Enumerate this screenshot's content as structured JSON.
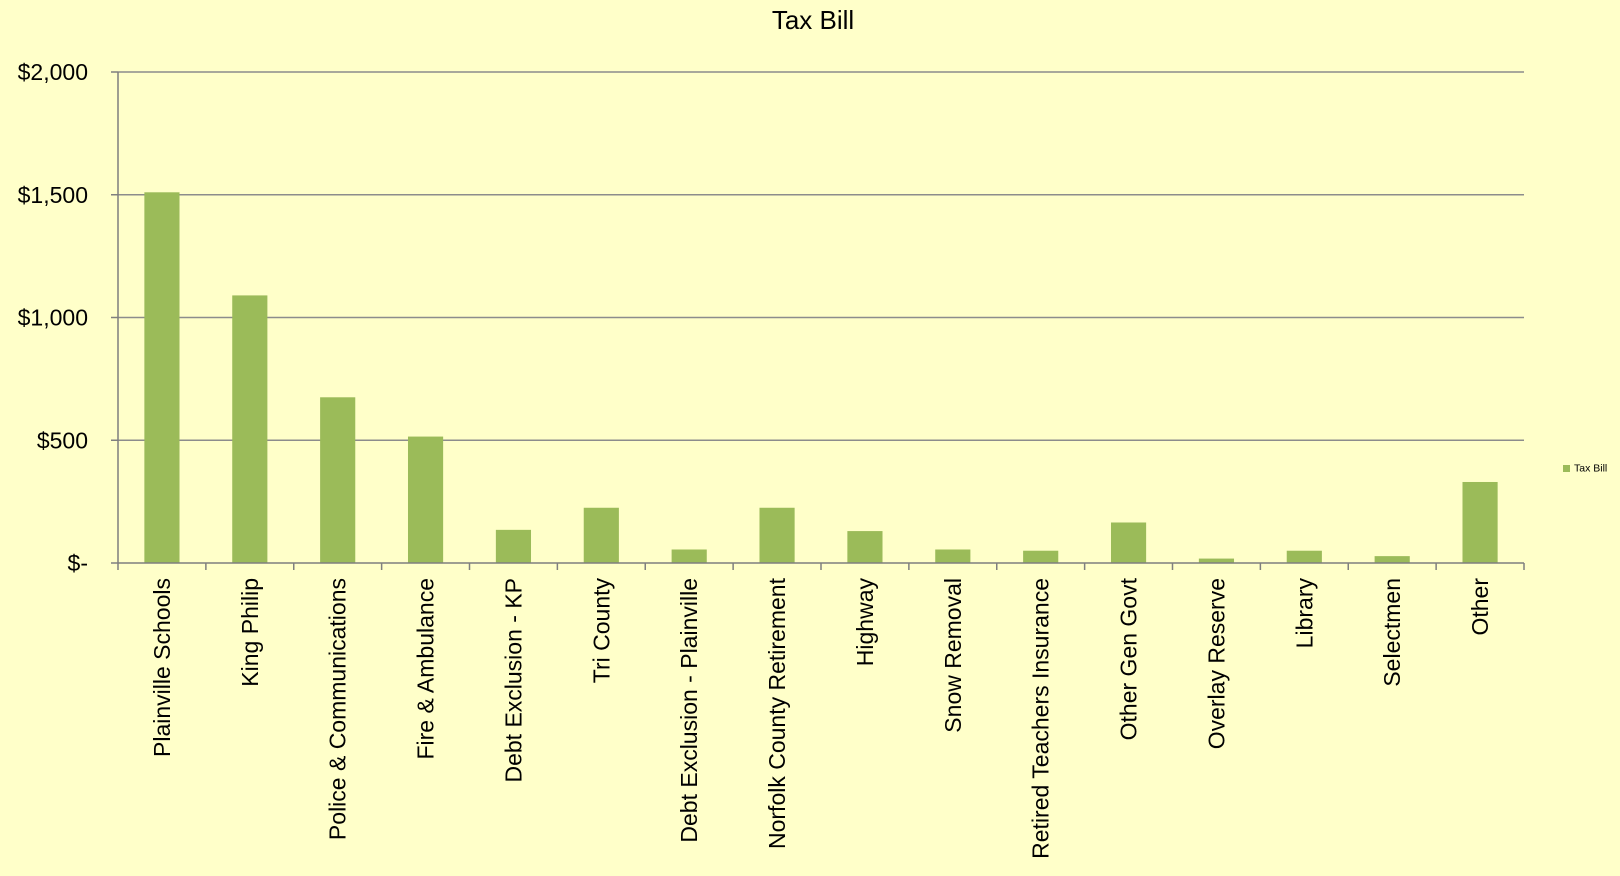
{
  "chart_data": {
    "type": "bar",
    "title": "Tax Bill",
    "xlabel": "",
    "ylabel": "",
    "ylim": [
      0,
      2000
    ],
    "yticks": [
      0,
      500,
      1000,
      1500,
      2000
    ],
    "ytick_labels": [
      "$-",
      "$500",
      "$1,000",
      "$1,500",
      "$2,000"
    ],
    "grid": true,
    "legend_position": "right",
    "categories": [
      "Plainville Schools",
      "King Philip",
      "Police & Communications",
      "Fire & Ambulance",
      "Debt Exclusion - KP",
      "Tri County",
      "Debt Exclusion - Plainville",
      "Norfolk County Retirement",
      "Highway",
      "Snow Removal",
      "Retired Teachers Insurance",
      "Other Gen Govt",
      "Overlay Reserve",
      "Library",
      "Selectmen",
      "Other"
    ],
    "series": [
      {
        "name": "Tax Bill",
        "color": "#9BBB59",
        "values": [
          1510,
          1090,
          675,
          515,
          135,
          225,
          55,
          225,
          130,
          55,
          50,
          165,
          18,
          50,
          28,
          330
        ]
      }
    ],
    "colors": {
      "background": "#FFFFC9",
      "gridline": "#8C8C8C",
      "axis": "#7F7F7F",
      "text": "#000000"
    }
  }
}
